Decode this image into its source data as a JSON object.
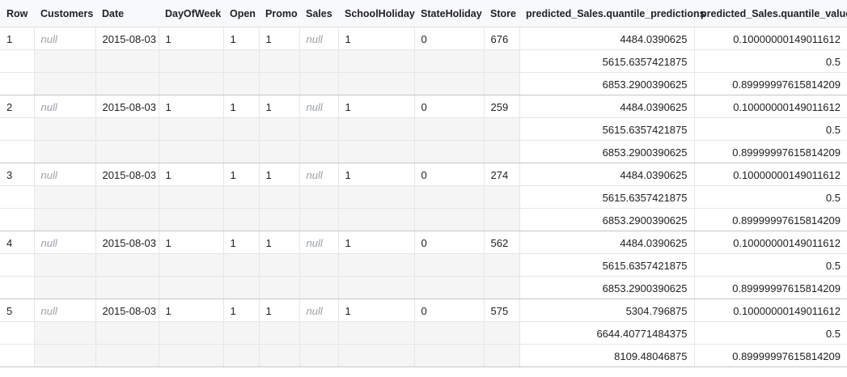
{
  "columns": [
    "Row",
    "Customers",
    "Date",
    "DayOfWeek",
    "Open",
    "Promo",
    "Sales",
    "SchoolHoliday",
    "StateHoliday",
    "Store",
    "predicted_Sales.quantile_predictions",
    "predicted_Sales.quantile_values"
  ],
  "rows": [
    {
      "row": "1",
      "customers": "null",
      "date": "2015-08-03",
      "dayofweek": "1",
      "open": "1",
      "promo": "1",
      "sales": "null",
      "schoolholiday": "1",
      "stateholiday": "0",
      "store": "676",
      "quantile_predictions": [
        "4484.0390625",
        "5615.6357421875",
        "6853.2900390625"
      ],
      "quantile_values": [
        "0.10000000149011612",
        "0.5",
        "0.89999997615814209"
      ]
    },
    {
      "row": "2",
      "customers": "null",
      "date": "2015-08-03",
      "dayofweek": "1",
      "open": "1",
      "promo": "1",
      "sales": "null",
      "schoolholiday": "1",
      "stateholiday": "0",
      "store": "259",
      "quantile_predictions": [
        "4484.0390625",
        "5615.6357421875",
        "6853.2900390625"
      ],
      "quantile_values": [
        "0.10000000149011612",
        "0.5",
        "0.89999997615814209"
      ]
    },
    {
      "row": "3",
      "customers": "null",
      "date": "2015-08-03",
      "dayofweek": "1",
      "open": "1",
      "promo": "1",
      "sales": "null",
      "schoolholiday": "1",
      "stateholiday": "0",
      "store": "274",
      "quantile_predictions": [
        "4484.0390625",
        "5615.6357421875",
        "6853.2900390625"
      ],
      "quantile_values": [
        "0.10000000149011612",
        "0.5",
        "0.89999997615814209"
      ]
    },
    {
      "row": "4",
      "customers": "null",
      "date": "2015-08-03",
      "dayofweek": "1",
      "open": "1",
      "promo": "1",
      "sales": "null",
      "schoolholiday": "1",
      "stateholiday": "0",
      "store": "562",
      "quantile_predictions": [
        "4484.0390625",
        "5615.6357421875",
        "6853.2900390625"
      ],
      "quantile_values": [
        "0.10000000149011612",
        "0.5",
        "0.89999997615814209"
      ]
    },
    {
      "row": "5",
      "customers": "null",
      "date": "2015-08-03",
      "dayofweek": "1",
      "open": "1",
      "promo": "1",
      "sales": "null",
      "schoolholiday": "1",
      "stateholiday": "0",
      "store": "575",
      "quantile_predictions": [
        "5304.796875",
        "6644.40771484375",
        "8109.48046875"
      ],
      "quantile_values": [
        "0.10000000149011612",
        "0.5",
        "0.89999997615814209"
      ]
    }
  ]
}
